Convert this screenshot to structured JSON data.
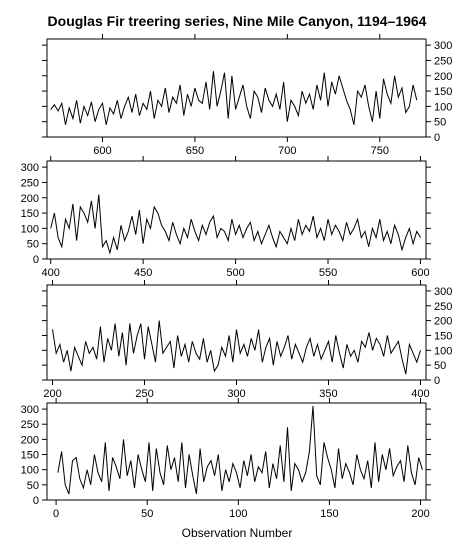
{
  "chart_data": {
    "type": "line",
    "title": "Douglas Fir treering series, Nine Mile Canyon, 1194–1964",
    "xlabel": "Observation Number",
    "ylabel": "",
    "grid": false,
    "yticks": [
      0,
      50,
      100,
      150,
      200,
      250,
      300
    ],
    "panels": [
      {
        "name": "panel-1",
        "xlim": [
          570,
          775
        ],
        "ylim": [
          0,
          320
        ],
        "xticks": [
          600,
          650,
          700,
          750
        ],
        "y_axis_side": "right",
        "x": [
          572,
          574,
          576,
          578,
          580,
          582,
          584,
          586,
          588,
          590,
          592,
          594,
          596,
          598,
          600,
          602,
          604,
          606,
          608,
          610,
          612,
          614,
          616,
          618,
          620,
          622,
          624,
          626,
          628,
          630,
          632,
          634,
          636,
          638,
          640,
          642,
          644,
          646,
          648,
          650,
          652,
          654,
          656,
          658,
          660,
          662,
          664,
          666,
          668,
          670,
          672,
          674,
          676,
          678,
          680,
          682,
          684,
          686,
          688,
          690,
          692,
          694,
          696,
          698,
          700,
          702,
          704,
          706,
          708,
          710,
          712,
          714,
          716,
          718,
          720,
          722,
          724,
          726,
          728,
          730,
          732,
          734,
          736,
          738,
          740,
          742,
          744,
          746,
          748,
          750,
          752,
          754,
          756,
          758,
          760,
          762,
          764,
          766,
          768,
          770
        ],
        "y": [
          90,
          105,
          85,
          110,
          40,
          95,
          60,
          120,
          45,
          100,
          70,
          115,
          50,
          90,
          110,
          40,
          95,
          75,
          120,
          60,
          100,
          130,
          80,
          140,
          70,
          110,
          90,
          150,
          60,
          120,
          100,
          160,
          80,
          130,
          110,
          170,
          70,
          140,
          100,
          160,
          120,
          110,
          180,
          90,
          215,
          100,
          150,
          210,
          60,
          200,
          90,
          130,
          170,
          100,
          60,
          150,
          130,
          80,
          160,
          120,
          100,
          140,
          90,
          180,
          50,
          120,
          100,
          70,
          150,
          110,
          140,
          90,
          170,
          120,
          210,
          100,
          180,
          140,
          200,
          160,
          120,
          90,
          40,
          150,
          130,
          170,
          100,
          50,
          150,
          60,
          190,
          140,
          110,
          200,
          130,
          160,
          80,
          100,
          170,
          120
        ]
      },
      {
        "name": "panel-2",
        "xlim": [
          398,
          603
        ],
        "ylim": [
          0,
          320
        ],
        "xticks": [
          400,
          450,
          500,
          550,
          600
        ],
        "y_axis_side": "left",
        "x": [
          400,
          402,
          404,
          406,
          408,
          410,
          412,
          414,
          416,
          418,
          420,
          422,
          424,
          426,
          428,
          430,
          432,
          434,
          436,
          438,
          440,
          442,
          444,
          446,
          448,
          450,
          452,
          454,
          456,
          458,
          460,
          462,
          464,
          466,
          468,
          470,
          472,
          474,
          476,
          478,
          480,
          482,
          484,
          486,
          488,
          490,
          492,
          494,
          496,
          498,
          500,
          502,
          504,
          506,
          508,
          510,
          512,
          514,
          516,
          518,
          520,
          522,
          524,
          526,
          528,
          530,
          532,
          534,
          536,
          538,
          540,
          542,
          544,
          546,
          548,
          550,
          552,
          554,
          556,
          558,
          560,
          562,
          564,
          566,
          568,
          570,
          572,
          574,
          576,
          578,
          580,
          582,
          584,
          586,
          588,
          590,
          592,
          594,
          596,
          598,
          600
        ],
        "y": [
          100,
          150,
          70,
          40,
          130,
          100,
          180,
          60,
          170,
          150,
          120,
          190,
          100,
          210,
          40,
          60,
          20,
          70,
          30,
          110,
          60,
          90,
          140,
          80,
          160,
          50,
          130,
          100,
          170,
          150,
          110,
          90,
          60,
          120,
          80,
          50,
          100,
          70,
          130,
          90,
          60,
          110,
          80,
          120,
          140,
          70,
          100,
          90,
          60,
          130,
          80,
          110,
          70,
          100,
          120,
          60,
          90,
          50,
          80,
          110,
          70,
          40,
          90,
          70,
          50,
          100,
          60,
          130,
          80,
          110,
          90,
          140,
          70,
          100,
          60,
          130,
          80,
          110,
          90,
          60,
          120,
          80,
          100,
          130,
          70,
          90,
          40,
          100,
          70,
          130,
          60,
          90,
          50,
          110,
          80,
          30,
          70,
          100,
          50,
          90,
          70
        ]
      },
      {
        "name": "panel-3",
        "xlim": [
          197,
          403
        ],
        "ylim": [
          0,
          320
        ],
        "xticks": [
          200,
          250,
          300,
          350,
          400
        ],
        "y_axis_side": "right",
        "x": [
          200,
          202,
          204,
          206,
          208,
          210,
          212,
          214,
          216,
          218,
          220,
          222,
          224,
          226,
          228,
          230,
          232,
          234,
          236,
          238,
          240,
          242,
          244,
          246,
          248,
          250,
          252,
          254,
          256,
          258,
          260,
          262,
          264,
          266,
          268,
          270,
          272,
          274,
          276,
          278,
          280,
          282,
          284,
          286,
          288,
          290,
          292,
          294,
          296,
          298,
          300,
          302,
          304,
          306,
          308,
          310,
          312,
          314,
          316,
          318,
          320,
          322,
          324,
          326,
          328,
          330,
          332,
          334,
          336,
          338,
          340,
          342,
          344,
          346,
          348,
          350,
          352,
          354,
          356,
          358,
          360,
          362,
          364,
          366,
          368,
          370,
          372,
          374,
          376,
          378,
          380,
          382,
          384,
          386,
          388,
          390,
          392,
          394,
          396,
          398,
          400
        ],
        "y": [
          170,
          90,
          120,
          60,
          100,
          30,
          110,
          80,
          50,
          130,
          90,
          110,
          70,
          180,
          60,
          140,
          100,
          190,
          80,
          160,
          50,
          190,
          90,
          150,
          190,
          70,
          180,
          120,
          60,
          200,
          90,
          110,
          130,
          40,
          150,
          80,
          120,
          60,
          130,
          90,
          70,
          140,
          60,
          100,
          30,
          50,
          110,
          80,
          150,
          60,
          170,
          90,
          120,
          80,
          140,
          100,
          170,
          60,
          110,
          140,
          50,
          130,
          80,
          110,
          150,
          70,
          120,
          90,
          60,
          110,
          140,
          80,
          120,
          70,
          100,
          130,
          60,
          150,
          90,
          40,
          120,
          80,
          100,
          60,
          130,
          110,
          160,
          100,
          140,
          120,
          80,
          150,
          90,
          110,
          130,
          70,
          20,
          120,
          90,
          60,
          100
        ]
      },
      {
        "name": "panel-4",
        "xlim": [
          -5,
          203
        ],
        "ylim": [
          0,
          320
        ],
        "xticks": [
          0,
          50,
          100,
          150,
          200
        ],
        "y_axis_side": "left",
        "x": [
          1,
          3,
          5,
          7,
          9,
          11,
          13,
          15,
          17,
          19,
          21,
          23,
          25,
          27,
          29,
          31,
          33,
          35,
          37,
          39,
          41,
          43,
          45,
          47,
          49,
          51,
          53,
          55,
          57,
          59,
          61,
          63,
          65,
          67,
          69,
          71,
          73,
          75,
          77,
          79,
          81,
          83,
          85,
          87,
          89,
          91,
          93,
          95,
          97,
          99,
          101,
          103,
          105,
          107,
          109,
          111,
          113,
          115,
          117,
          119,
          121,
          123,
          125,
          127,
          129,
          131,
          133,
          135,
          137,
          139,
          141,
          143,
          145,
          147,
          149,
          151,
          153,
          155,
          157,
          159,
          161,
          163,
          165,
          167,
          169,
          171,
          173,
          175,
          177,
          179,
          181,
          183,
          185,
          187,
          189,
          191,
          193,
          195,
          197,
          199,
          201
        ],
        "y": [
          90,
          160,
          50,
          20,
          130,
          140,
          70,
          40,
          100,
          50,
          150,
          90,
          60,
          190,
          30,
          140,
          110,
          70,
          200,
          80,
          130,
          40,
          150,
          100,
          60,
          190,
          30,
          170,
          90,
          50,
          180,
          100,
          140,
          60,
          190,
          40,
          150,
          80,
          20,
          170,
          60,
          110,
          130,
          80,
          150,
          30,
          100,
          60,
          120,
          90,
          40,
          130,
          80,
          150,
          60,
          110,
          90,
          160,
          40,
          120,
          70,
          180,
          60,
          240,
          30,
          120,
          100,
          60,
          90,
          160,
          310,
          80,
          50,
          190,
          140,
          100,
          40,
          170,
          70,
          120,
          90,
          50,
          150,
          100,
          70,
          130,
          40,
          190,
          60,
          150,
          100,
          170,
          80,
          110,
          130,
          60,
          180,
          90,
          50,
          140,
          100
        ]
      }
    ]
  }
}
